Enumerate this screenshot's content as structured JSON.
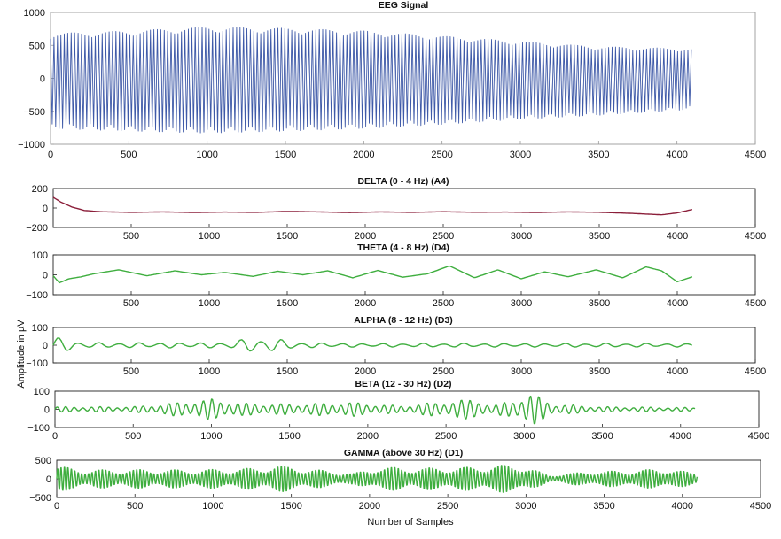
{
  "figure": {
    "ylabel": "Amplitude in µV",
    "xlabel": "Number of Samples"
  },
  "chart_data": [
    {
      "type": "line",
      "title": "EEG Signal",
      "xlim": [
        0,
        4500
      ],
      "ylim": [
        -1000,
        1000
      ],
      "xticks": [
        0,
        500,
        1000,
        1500,
        2000,
        2500,
        3000,
        3500,
        4000,
        4500
      ],
      "yticks": [
        1000,
        500,
        0,
        -500,
        -1000
      ],
      "color": "#3f5aa8",
      "series": [
        {
          "x_range": [
            0,
            4096
          ],
          "envelope_x": [
            0,
            500,
            1000,
            1500,
            2000,
            2500,
            3000,
            3500,
            4096
          ],
          "envelope_max": [
            680,
            720,
            780,
            760,
            720,
            640,
            560,
            480,
            450
          ],
          "envelope_min": [
            -760,
            -800,
            -830,
            -800,
            -760,
            -700,
            -620,
            -560,
            -470
          ],
          "oscillation_period_samples": 22
        }
      ]
    },
    {
      "type": "line",
      "title": "DELTA (0 - 4 Hz)",
      "tag": "(A4)",
      "xlim": [
        0,
        4500
      ],
      "ylim": [
        -200,
        200
      ],
      "xticks": [
        500,
        1000,
        1500,
        2000,
        2500,
        3000,
        3500,
        4000,
        4500
      ],
      "yticks": [
        200,
        0,
        -200
      ],
      "color": "#8b1f3a",
      "series": [
        {
          "x": [
            0,
            50,
            120,
            200,
            300,
            500,
            700,
            900,
            1100,
            1300,
            1500,
            1700,
            1900,
            2100,
            2300,
            2500,
            2700,
            2900,
            3100,
            3300,
            3500,
            3700,
            3900,
            4000,
            4096
          ],
          "y": [
            110,
            60,
            10,
            -25,
            -38,
            -45,
            -40,
            -46,
            -42,
            -45,
            -35,
            -40,
            -47,
            -40,
            -45,
            -38,
            -44,
            -42,
            -46,
            -40,
            -44,
            -55,
            -70,
            -50,
            -15
          ]
        }
      ]
    },
    {
      "type": "line",
      "title": "THETA (4 - 8 Hz)",
      "tag": "(D4)",
      "xlim": [
        0,
        4500
      ],
      "ylim": [
        -100,
        100
      ],
      "xticks": [
        500,
        1000,
        1500,
        2000,
        2500,
        3000,
        3500,
        4000,
        4500
      ],
      "yticks": [
        100,
        0,
        -100
      ],
      "color": "#3fae3f",
      "series": [
        {
          "x": [
            0,
            40,
            100,
            180,
            260,
            420,
            600,
            780,
            950,
            1100,
            1280,
            1440,
            1600,
            1760,
            1920,
            2080,
            2240,
            2400,
            2540,
            2700,
            2850,
            3000,
            3150,
            3300,
            3480,
            3650,
            3800,
            3900,
            4000,
            4096
          ],
          "y": [
            -5,
            -40,
            -20,
            -10,
            5,
            25,
            -5,
            20,
            0,
            12,
            -8,
            18,
            0,
            20,
            -15,
            22,
            -12,
            5,
            45,
            -15,
            25,
            -20,
            15,
            -10,
            25,
            -15,
            40,
            20,
            -35,
            -10
          ]
        }
      ]
    },
    {
      "type": "line",
      "title": "ALPHA (8 - 12 Hz)",
      "tag": "(D3)",
      "xlim": [
        0,
        4500
      ],
      "ylim": [
        -100,
        100
      ],
      "xticks": [
        500,
        1000,
        1500,
        2000,
        2500,
        3000,
        3500,
        4000,
        4500
      ],
      "yticks": [
        100,
        0,
        -100
      ],
      "color": "#3fae3f",
      "series": [
        {
          "x_range": [
            0,
            4096
          ],
          "period_samples": 130,
          "envelope_x": [
            0,
            60,
            200,
            600,
            1100,
            1250,
            1400,
            1600,
            2000,
            2500,
            3000,
            3500,
            4096
          ],
          "envelope_amp": [
            50,
            40,
            15,
            15,
            15,
            40,
            40,
            15,
            10,
            12,
            10,
            12,
            10
          ]
        }
      ]
    },
    {
      "type": "line",
      "title": "BETA (12 - 30 Hz)",
      "tag": "(D2)",
      "xlim": [
        0,
        4500
      ],
      "ylim": [
        -100,
        100
      ],
      "xticks": [
        0,
        500,
        1000,
        1500,
        2000,
        2500,
        3000,
        3500,
        4000,
        4500
      ],
      "yticks": [
        100,
        0,
        -100
      ],
      "color": "#3fae3f",
      "series": [
        {
          "x_range": [
            0,
            4096
          ],
          "period_samples": 55,
          "envelope_x": [
            0,
            500,
            800,
            1000,
            1200,
            1500,
            1900,
            2200,
            2550,
            2700,
            2800,
            3050,
            3200,
            3500,
            4096
          ],
          "envelope_amp": [
            15,
            15,
            40,
            60,
            35,
            30,
            40,
            20,
            50,
            60,
            20,
            90,
            30,
            15,
            10
          ]
        }
      ]
    },
    {
      "type": "line",
      "title": "GAMMA (above 30 Hz)",
      "tag": "(D1)",
      "xlim": [
        0,
        4500
      ],
      "ylim": [
        -500,
        500
      ],
      "xticks": [
        0,
        500,
        1000,
        1500,
        2000,
        2500,
        3000,
        3500,
        4000,
        4500
      ],
      "yticks": [
        500,
        0,
        -500
      ],
      "color": "#3fae3f",
      "series": [
        {
          "x_range": [
            0,
            4096
          ],
          "period_samples": 22,
          "envelope_x": [
            0,
            200,
            500,
            900,
            1300,
            1400,
            1600,
            1900,
            2050,
            2300,
            2600,
            2950,
            3150,
            3400,
            3600,
            3900,
            4096
          ],
          "envelope_amp": [
            350,
            250,
            260,
            250,
            300,
            380,
            280,
            150,
            330,
            300,
            320,
            400,
            100,
            200,
            220,
            280,
            150
          ]
        }
      ]
    }
  ]
}
